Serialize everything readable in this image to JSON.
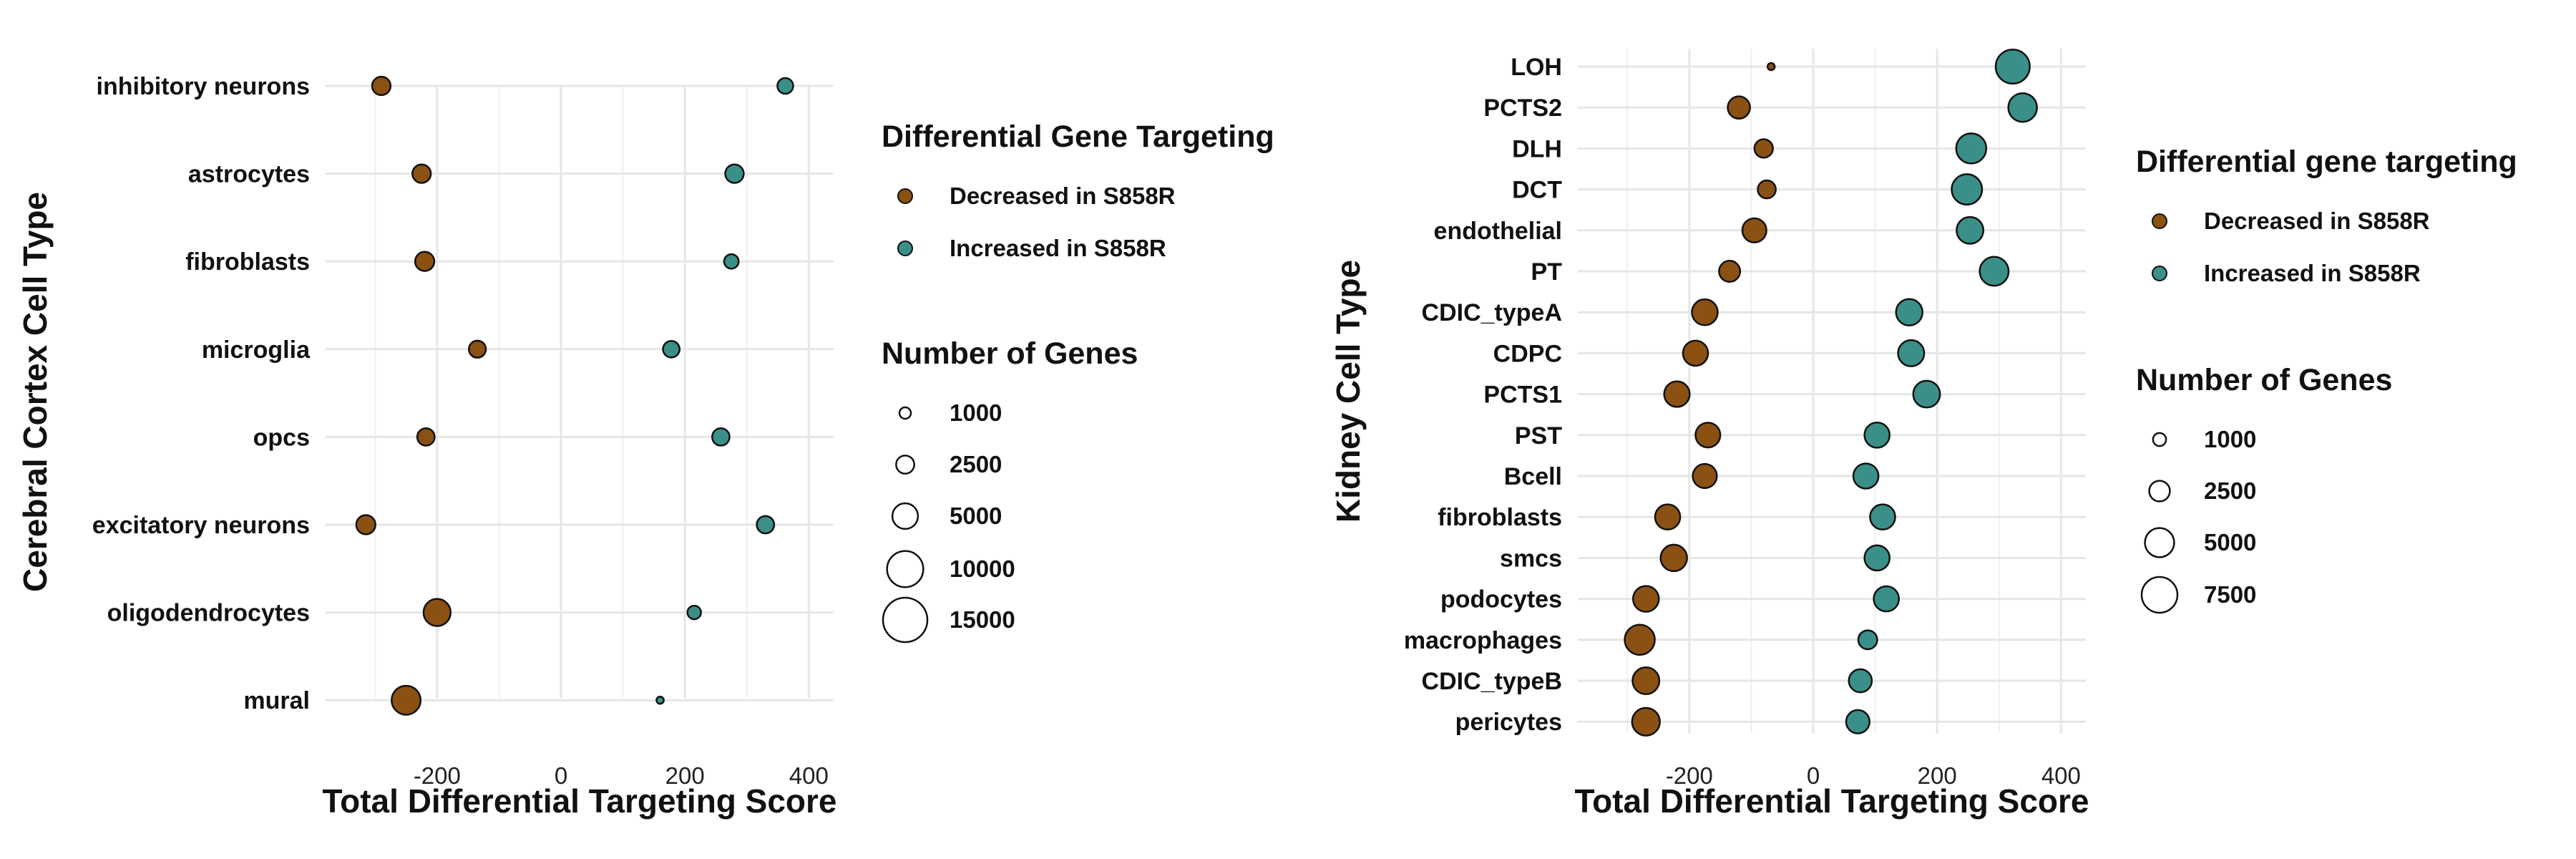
{
  "chart_data": [
    {
      "type": "scatter",
      "ylabel": "Cerebral Cortex Cell Type",
      "xlabel": "Total Differential Targeting Score",
      "xlim": [
        -380,
        440
      ],
      "xticks": [
        -200,
        0,
        200,
        400
      ],
      "xtick_labels": [
        "-200",
        "0",
        "200",
        "400"
      ],
      "categories": [
        "inhibitory neurons",
        "astrocytes",
        "fibroblasts",
        "microglia",
        "opcs",
        "excitatory neurons",
        "oligodendrocytes",
        "mural"
      ],
      "series": [
        {
          "name": "Decreased in S858R",
          "color": "#8B5112",
          "points": [
            {
              "category": "inhibitory neurons",
              "x": -290,
              "genes": 2600
            },
            {
              "category": "astrocytes",
              "x": -225,
              "genes": 2600
            },
            {
              "category": "fibroblasts",
              "x": -220,
              "genes": 2800
            },
            {
              "category": "microglia",
              "x": -135,
              "genes": 2200
            },
            {
              "category": "opcs",
              "x": -218,
              "genes": 2300
            },
            {
              "category": "excitatory neurons",
              "x": -315,
              "genes": 2800
            },
            {
              "category": "oligodendrocytes",
              "x": -200,
              "genes": 5600
            },
            {
              "category": "mural",
              "x": -250,
              "genes": 6400
            }
          ]
        },
        {
          "name": "Increased in S858R",
          "color": "#3A9088",
          "points": [
            {
              "category": "inhibitory neurons",
              "x": 362,
              "genes": 1900
            },
            {
              "category": "astrocytes",
              "x": 280,
              "genes": 2600
            },
            {
              "category": "fibroblasts",
              "x": 275,
              "genes": 1600
            },
            {
              "category": "microglia",
              "x": 178,
              "genes": 2100
            },
            {
              "category": "opcs",
              "x": 258,
              "genes": 2300
            },
            {
              "category": "excitatory neurons",
              "x": 330,
              "genes": 2300
            },
            {
              "category": "oligodendrocytes",
              "x": 215,
              "genes": 1400
            },
            {
              "category": "mural",
              "x": 160,
              "genes": 400
            }
          ]
        }
      ],
      "legend_fill_title": "Differential Gene Targeting",
      "legend_size_title": "Number of Genes",
      "size_legend_values": [
        1000,
        2500,
        5000,
        10000,
        15000
      ],
      "size_legend_labels": [
        "1000",
        "2500",
        "5000",
        "10000",
        "15000"
      ],
      "size_max_genes": 15000,
      "grid": true,
      "legend_position": "right"
    },
    {
      "type": "scatter",
      "ylabel": "Kidney Cell Type",
      "xlabel": "Total Differential Targeting Score",
      "xlim": [
        -380,
        440
      ],
      "xticks": [
        -200,
        0,
        200,
        400
      ],
      "xtick_labels": [
        "-200",
        "0",
        "200",
        "400"
      ],
      "categories": [
        "LOH",
        "PCTS2",
        "DLH",
        "DCT",
        "endothelial",
        "PT",
        "CDIC_typeA",
        "CDPC",
        "PCTS1",
        "PST",
        "Bcell",
        "fibroblasts",
        "smcs",
        "podocytes",
        "macrophages",
        "CDIC_typeB",
        "pericytes"
      ],
      "series": [
        {
          "name": "Decreased in S858R",
          "color": "#8B5112",
          "points": [
            {
              "category": "LOH",
              "x": -68,
              "genes": 300
            },
            {
              "category": "PCTS2",
              "x": -120,
              "genes": 2900
            },
            {
              "category": "DLH",
              "x": -80,
              "genes": 2000
            },
            {
              "category": "DCT",
              "x": -75,
              "genes": 1900
            },
            {
              "category": "endothelial",
              "x": -95,
              "genes": 3400
            },
            {
              "category": "PT",
              "x": -135,
              "genes": 2600
            },
            {
              "category": "CDIC_typeA",
              "x": -175,
              "genes": 3900
            },
            {
              "category": "CDPC",
              "x": -190,
              "genes": 3700
            },
            {
              "category": "PCTS1",
              "x": -220,
              "genes": 3800
            },
            {
              "category": "PST",
              "x": -170,
              "genes": 3600
            },
            {
              "category": "Bcell",
              "x": -175,
              "genes": 3400
            },
            {
              "category": "fibroblasts",
              "x": -235,
              "genes": 3700
            },
            {
              "category": "smcs",
              "x": -225,
              "genes": 4100
            },
            {
              "category": "podocytes",
              "x": -270,
              "genes": 3900
            },
            {
              "category": "macrophages",
              "x": -280,
              "genes": 5300
            },
            {
              "category": "CDIC_typeB",
              "x": -270,
              "genes": 4200
            },
            {
              "category": "pericytes",
              "x": -270,
              "genes": 4500
            }
          ]
        },
        {
          "name": "Increased in S858R",
          "color": "#3A9088",
          "points": [
            {
              "category": "LOH",
              "x": 322,
              "genes": 6800
            },
            {
              "category": "PCTS2",
              "x": 338,
              "genes": 4800
            },
            {
              "category": "DLH",
              "x": 255,
              "genes": 5300
            },
            {
              "category": "DCT",
              "x": 248,
              "genes": 5400
            },
            {
              "category": "endothelial",
              "x": 253,
              "genes": 4200
            },
            {
              "category": "PT",
              "x": 292,
              "genes": 4900
            },
            {
              "category": "CDIC_typeA",
              "x": 155,
              "genes": 4100
            },
            {
              "category": "CDPC",
              "x": 158,
              "genes": 4000
            },
            {
              "category": "PCTS1",
              "x": 183,
              "genes": 4200
            },
            {
              "category": "PST",
              "x": 103,
              "genes": 3700
            },
            {
              "category": "Bcell",
              "x": 85,
              "genes": 3700
            },
            {
              "category": "fibroblasts",
              "x": 112,
              "genes": 3700
            },
            {
              "category": "smcs",
              "x": 103,
              "genes": 3700
            },
            {
              "category": "podocytes",
              "x": 118,
              "genes": 3700
            },
            {
              "category": "macrophages",
              "x": 88,
              "genes": 2100
            },
            {
              "category": "CDIC_typeB",
              "x": 76,
              "genes": 3100
            },
            {
              "category": "pericytes",
              "x": 72,
              "genes": 3200
            }
          ]
        }
      ],
      "legend_fill_title": "Differential gene targeting",
      "legend_size_title": "Number of Genes",
      "size_legend_values": [
        1000,
        2500,
        5000,
        7500
      ],
      "size_legend_labels": [
        "1000",
        "2500",
        "5000",
        "7500"
      ],
      "size_max_genes": 7500,
      "grid": true,
      "legend_position": "right"
    }
  ]
}
